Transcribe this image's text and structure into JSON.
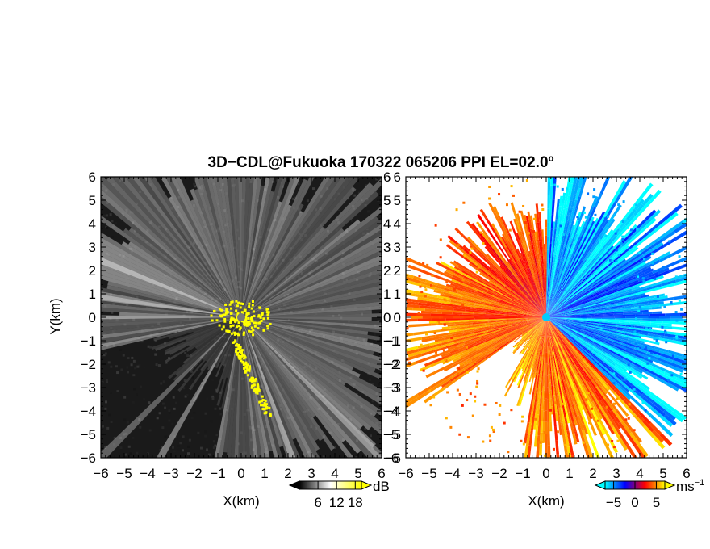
{
  "title": "3D−CDL@Fukuoka 170322 065206 PPI EL=02.0º",
  "chart_data": [
    {
      "type": "heatmap",
      "panel": "reflectivity",
      "xlabel": "X(km)",
      "ylabel": "Y(km)",
      "xlim": [
        -6,
        6
      ],
      "ylim": [
        -6,
        6
      ],
      "x_ticks": [
        "−6",
        "−5",
        "−4",
        "−3",
        "−2",
        "−1",
        "0",
        "1",
        "2",
        "3",
        "4",
        "5",
        "6"
      ],
      "y_ticks": [
        "6",
        "5",
        "4",
        "3",
        "2",
        "1",
        "0",
        "−1",
        "−2",
        "−3",
        "−4",
        "−5",
        "−6"
      ],
      "grid": false,
      "colorbar": {
        "unit": "dB",
        "ticks": [
          "6",
          "12",
          "18"
        ],
        "tick_values": [
          6,
          12,
          18
        ],
        "range": [
          0,
          20
        ],
        "colors": [
          "#000000",
          "#ffffff",
          "#ffff00"
        ]
      },
      "high_echo_color": "#ffff00"
    },
    {
      "type": "heatmap",
      "panel": "doppler_velocity",
      "xlabel": "X(km)",
      "ylabel": "",
      "xlim": [
        -6,
        6
      ],
      "ylim": [
        -6,
        6
      ],
      "x_ticks": [
        "−6",
        "−5",
        "−4",
        "−3",
        "−2",
        "−1",
        "0",
        "1",
        "2",
        "3",
        "4",
        "5",
        "6"
      ],
      "y_ticks": [
        "6",
        "5",
        "4",
        "3",
        "2",
        "1",
        "0",
        "−1",
        "−2",
        "−3",
        "−4",
        "−5",
        "−6"
      ],
      "grid": false,
      "colorbar": {
        "unit": "ms",
        "unit_exp": "−1",
        "ticks": [
          "−5",
          "0",
          "5"
        ],
        "tick_values": [
          -5,
          0,
          5
        ],
        "range": [
          -7,
          7
        ],
        "colors": [
          "#00ffff",
          "#0000ff",
          "#ff0000",
          "#ffff00"
        ]
      },
      "radar_center": [
        0,
        0
      ],
      "radar_color": "#00ccff"
    }
  ]
}
